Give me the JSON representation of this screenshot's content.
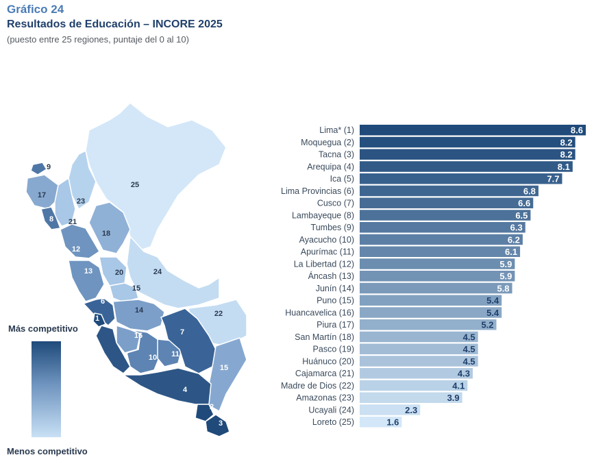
{
  "header": {
    "title": "Gráfico 24",
    "subtitle": "Resultados de Educación – INCORE 2025",
    "note": "(puesto entre 25 regiones, puntaje del 0 al 10)"
  },
  "legend": {
    "top_label": "Más competitivo",
    "bottom_label": "Menos competitivo",
    "dark_color": "#1f4a7a",
    "light_color": "#c8e0f5"
  },
  "map": {
    "labels": [
      "25",
      "9",
      "17",
      "23",
      "21",
      "8",
      "18",
      "12",
      "13",
      "20",
      "24",
      "15",
      "6",
      "1",
      "14",
      "22",
      "16",
      "7",
      "5",
      "10",
      "11",
      "15",
      "4",
      "2",
      "3"
    ]
  },
  "chart_data": {
    "type": "bar",
    "orientation": "horizontal",
    "categories": [
      "Lima* (1)",
      "Moquegua (2)",
      "Tacna (3)",
      "Arequipa (4)",
      "Ica (5)",
      "Lima Provincias (6)",
      "Cusco (7)",
      "Lambayeque (8)",
      "Tumbes (9)",
      "Ayacucho (10)",
      "Apurímac (11)",
      "La Libertad (12)",
      "Áncash (13)",
      "Junín (14)",
      "Puno (15)",
      "Huancavelica (16)",
      "Piura (17)",
      "San Martín (18)",
      "Pasco (19)",
      "Huánuco (20)",
      "Cajamarca (21)",
      "Madre de Dios (22)",
      "Amazonas (23)",
      "Ucayali (24)",
      "Loreto (25)"
    ],
    "values": [
      8.6,
      8.2,
      8.2,
      8.1,
      7.7,
      6.8,
      6.6,
      6.5,
      6.3,
      6.2,
      6.1,
      5.9,
      5.9,
      5.8,
      5.4,
      5.4,
      5.2,
      4.5,
      4.5,
      4.5,
      4.3,
      4.1,
      3.9,
      2.3,
      1.6
    ],
    "value_labels": [
      "8.6",
      "8.2",
      "8.2",
      "8.1",
      "7.7",
      "6.8",
      "6.6",
      "6.5",
      "6.3",
      "6.2",
      "6.1",
      "5.9",
      "5.9",
      "5.8",
      "5.4",
      "5.4",
      "5.2",
      "4.5",
      "4.5",
      "4.5",
      "4.3",
      "4.1",
      "3.9",
      "2.3",
      "1.6"
    ],
    "xlim": [
      0,
      8.6
    ],
    "grid": false,
    "colors": {
      "dark": "#1f4a7a",
      "light": "#d3e7f8",
      "label_on_dark": "#ffffff",
      "label_on_light": "#1f3f6b",
      "category_text": "#3a4a5c"
    }
  }
}
